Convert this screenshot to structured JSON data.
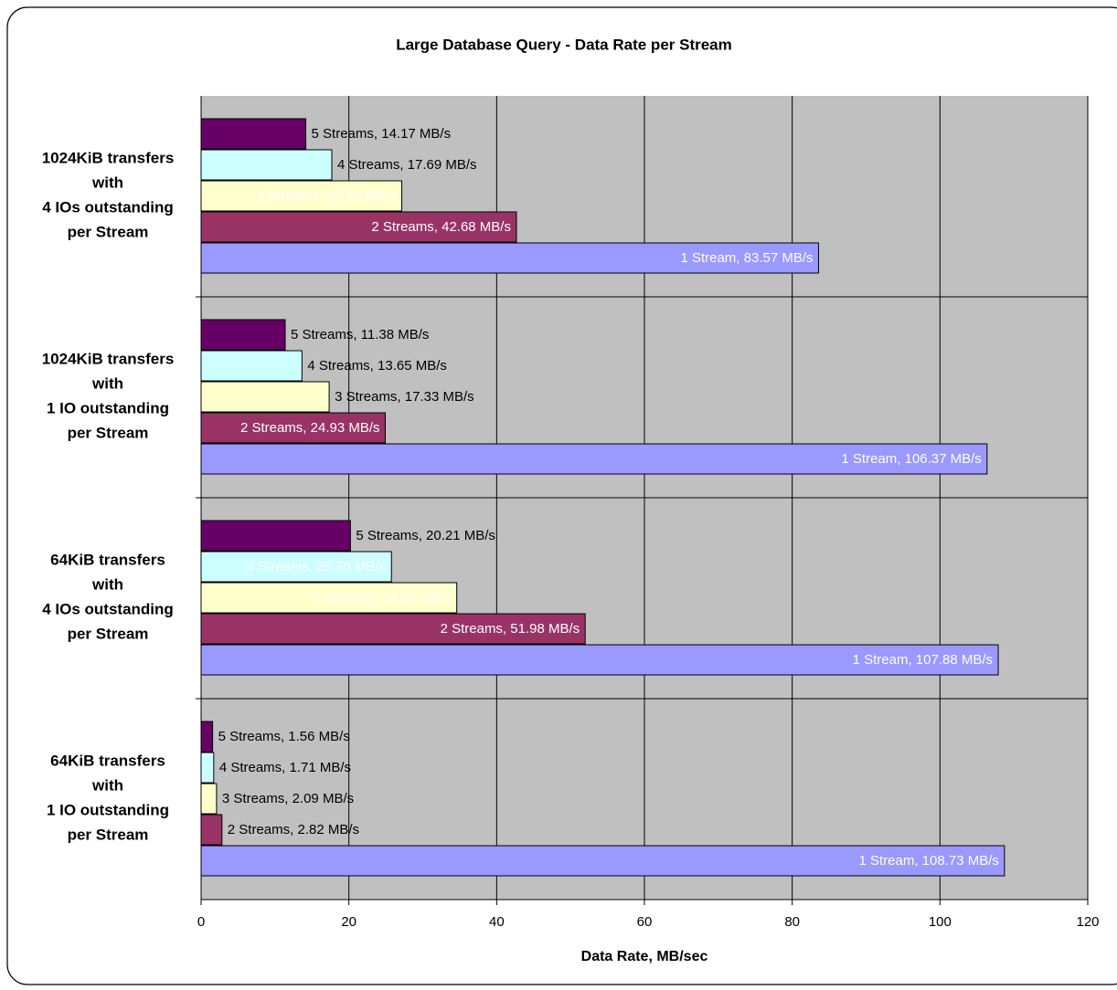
{
  "chart_data": {
    "type": "hbar",
    "title": "Large Database Query - Data Rate per Stream",
    "x_label": "Data Rate, MB/sec",
    "categories": [
      "1024KiB transfers\nwith\n4 IOs outstanding\nper Stream",
      "1024KiB transfers\nwith\n1 IO outstanding\nper Stream",
      "64KiB transfers\nwith\n4 IOs outstanding\nper Stream",
      "64KiB transfers\nwith\n1 IO outstanding\nper Stream"
    ],
    "series": [
      {
        "color": "#660066",
        "values": [
          14.17,
          11.38,
          20.21,
          1.56
        ],
        "value_labels": [
          "5 Streams, 14.17 MB/s",
          "5 Streams, 11.38 MB/s",
          "5 Streams, 20.21 MB/s",
          "5 Streams, 1.56 MB/s"
        ]
      },
      {
        "color": "#ccffff",
        "values": [
          17.69,
          13.65,
          25.76,
          1.71
        ],
        "value_labels": [
          "4 Streams, 17.69 MB/s",
          "4 Streams, 13.65 MB/s",
          "4 Streams, 25.76 MB/s",
          "4 Streams, 1.71 MB/s"
        ]
      },
      {
        "color": "#ffffcc",
        "values": [
          27.16,
          17.33,
          34.6,
          2.09
        ],
        "value_labels": [
          "3 Streams, 27.16 MB/s",
          "3 Streams, 17.33 MB/s",
          "3 Streams, 34.60 MB/s",
          "3 Streams, 2.09 MB/s"
        ]
      },
      {
        "color": "#993366",
        "values": [
          42.68,
          24.93,
          51.98,
          2.82
        ],
        "value_labels": [
          "2 Streams, 42.68 MB/s",
          "2 Streams, 24.93 MB/s",
          "2 Streams, 51.98 MB/s",
          "2 Streams, 2.82 MB/s"
        ]
      },
      {
        "color": "#9999ff",
        "values": [
          83.57,
          106.37,
          107.88,
          108.73
        ],
        "value_labels": [
          "1 Stream, 83.57 MB/s",
          "1 Stream, 106.37 MB/s",
          "1 Stream, 107.88 MB/s",
          "1 Stream, 108.73 MB/s"
        ]
      }
    ],
    "xlim": [
      0,
      120
    ],
    "xticks": [
      0,
      20,
      40,
      60,
      80,
      100,
      120
    ],
    "grid": true
  }
}
